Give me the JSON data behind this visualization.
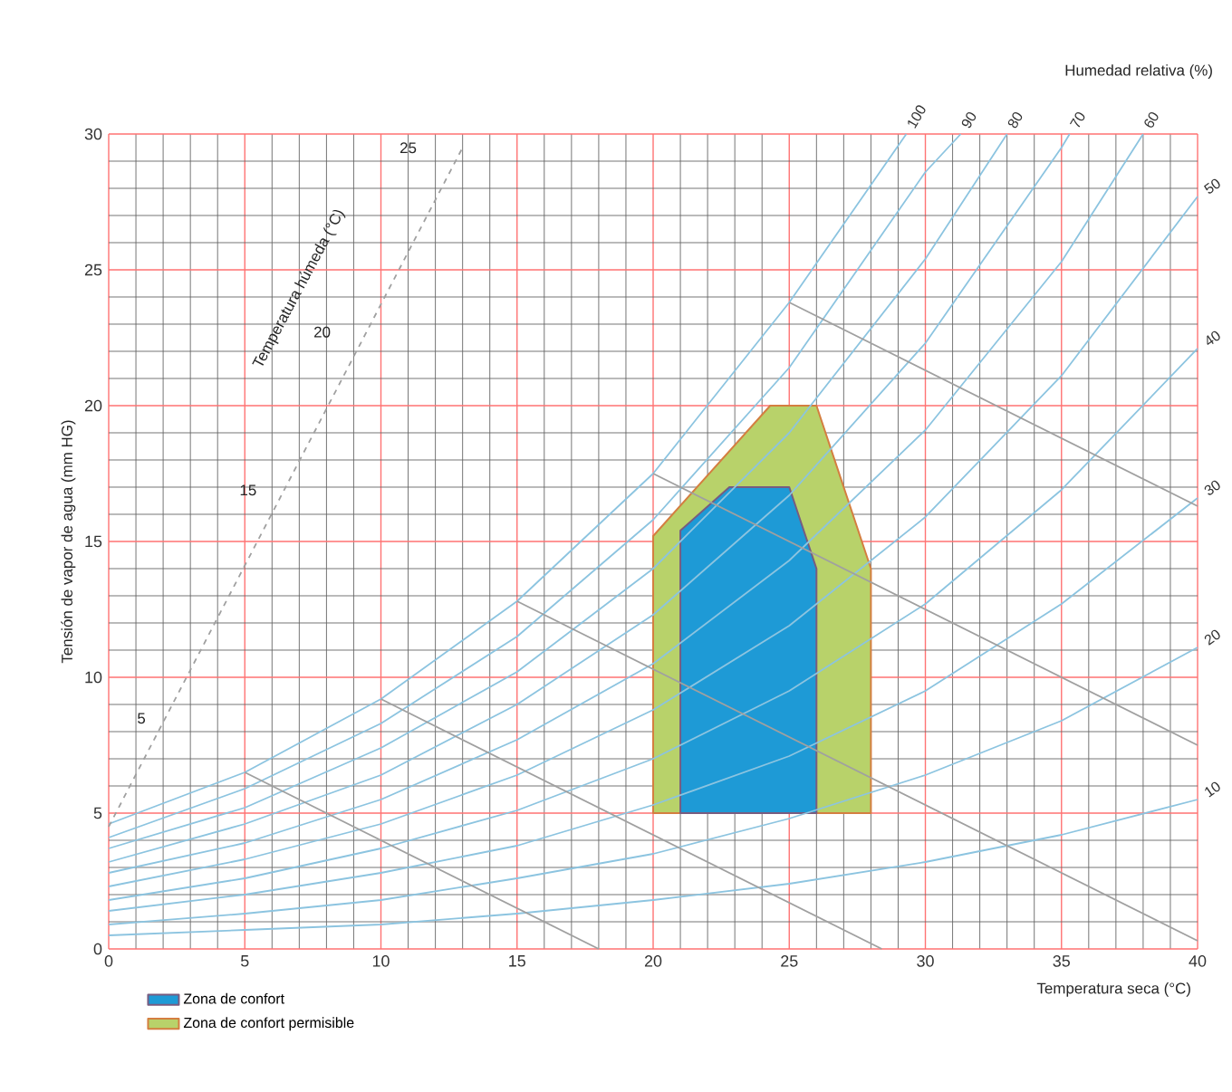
{
  "chart_data": {
    "type": "line",
    "xlabel": "Temperatura seca (°C)",
    "ylabel": "Tensión de vapor de agua (mm HG)",
    "xlim": [
      0,
      40
    ],
    "ylim": [
      0,
      30
    ],
    "xticks": [
      0,
      5,
      10,
      15,
      20,
      25,
      30,
      35,
      40
    ],
    "yticks": [
      0,
      5,
      10,
      15,
      20,
      25,
      30
    ],
    "grid": true,
    "legend": "bottom left",
    "annotations": [
      "Humedad relativa (%)",
      "Temperatura húmeda (°C)",
      "5",
      "15",
      "20",
      "25"
    ],
    "series": [
      {
        "name": "Zona de confort permisible",
        "type": "area",
        "color": "#b8d26a",
        "x": [
          20,
          20,
          24.3,
          26,
          28,
          28
        ],
        "values": [
          5,
          15.2,
          20,
          20,
          14,
          5
        ]
      },
      {
        "name": "Zona de confort",
        "type": "area",
        "color": "#1e9ad6",
        "x": [
          21,
          21,
          22.8,
          25,
          26,
          26
        ],
        "values": [
          5,
          15.4,
          17,
          17,
          14,
          5
        ]
      },
      {
        "name": "100",
        "color": "#8cc4e0",
        "x": [
          0,
          5,
          10,
          15,
          20,
          25,
          29.3
        ],
        "values": [
          4.6,
          6.5,
          9.2,
          12.8,
          17.5,
          23.8,
          30
        ]
      },
      {
        "name": "90",
        "color": "#8cc4e0",
        "x": [
          0,
          5,
          10,
          15,
          20,
          25,
          30,
          31.3
        ],
        "values": [
          4.1,
          5.9,
          8.3,
          11.5,
          15.8,
          21.4,
          28.6,
          30
        ]
      },
      {
        "name": "80",
        "color": "#8cc4e0",
        "x": [
          0,
          5,
          10,
          15,
          20,
          25,
          30,
          33
        ],
        "values": [
          3.7,
          5.2,
          7.4,
          10.2,
          14,
          19,
          25.4,
          30
        ]
      },
      {
        "name": "70",
        "color": "#8cc4e0",
        "x": [
          0,
          5,
          10,
          15,
          20,
          25,
          30,
          35,
          35.3
        ],
        "values": [
          3.2,
          4.6,
          6.4,
          9,
          12.3,
          16.7,
          22.3,
          29.5,
          30
        ]
      },
      {
        "name": "60",
        "color": "#8cc4e0",
        "x": [
          0,
          5,
          10,
          15,
          20,
          25,
          30,
          35,
          38
        ],
        "values": [
          2.8,
          3.9,
          5.5,
          7.7,
          10.5,
          14.3,
          19.1,
          25.3,
          30
        ]
      },
      {
        "name": "50",
        "color": "#8cc4e0",
        "x": [
          0,
          5,
          10,
          15,
          20,
          25,
          30,
          35,
          40
        ],
        "values": [
          2.3,
          3.3,
          4.6,
          6.4,
          8.8,
          11.9,
          15.9,
          21.1,
          27.7
        ]
      },
      {
        "name": "40",
        "color": "#8cc4e0",
        "x": [
          0,
          5,
          10,
          15,
          20,
          25,
          30,
          35,
          40
        ],
        "values": [
          1.8,
          2.6,
          3.7,
          5.1,
          7,
          9.5,
          12.7,
          16.9,
          22.1
        ]
      },
      {
        "name": "30",
        "color": "#8cc4e0",
        "x": [
          0,
          5,
          10,
          15,
          20,
          25,
          30,
          35,
          40
        ],
        "values": [
          1.4,
          2,
          2.8,
          3.8,
          5.3,
          7.1,
          9.5,
          12.7,
          16.6
        ]
      },
      {
        "name": "20",
        "color": "#8cc4e0",
        "x": [
          0,
          5,
          10,
          15,
          20,
          25,
          30,
          35,
          40
        ],
        "values": [
          0.9,
          1.3,
          1.8,
          2.6,
          3.5,
          4.8,
          6.4,
          8.4,
          11.1
        ]
      },
      {
        "name": "10",
        "color": "#8cc4e0",
        "x": [
          0,
          5,
          10,
          15,
          20,
          25,
          30,
          35,
          40
        ],
        "values": [
          0.5,
          0.7,
          0.9,
          1.3,
          1.8,
          2.4,
          3.2,
          4.2,
          5.5
        ]
      },
      {
        "color": "#a0a0a0",
        "line_style": "dashed",
        "x": [
          0,
          13
        ],
        "values": [
          4.5,
          29.5
        ]
      },
      {
        "color": "#a0a0a0",
        "x": [
          5,
          18
        ],
        "values": [
          6.5,
          0
        ]
      },
      {
        "color": "#a0a0a0",
        "x": [
          10,
          28.4
        ],
        "values": [
          9.2,
          0
        ]
      },
      {
        "color": "#a0a0a0",
        "x": [
          15,
          40
        ],
        "values": [
          12.8,
          0.3
        ]
      },
      {
        "color": "#a0a0a0",
        "x": [
          20,
          40
        ],
        "values": [
          17.5,
          7.5
        ]
      },
      {
        "color": "#a0a0a0",
        "x": [
          25,
          40
        ],
        "values": [
          23.8,
          16.3
        ]
      }
    ]
  }
}
